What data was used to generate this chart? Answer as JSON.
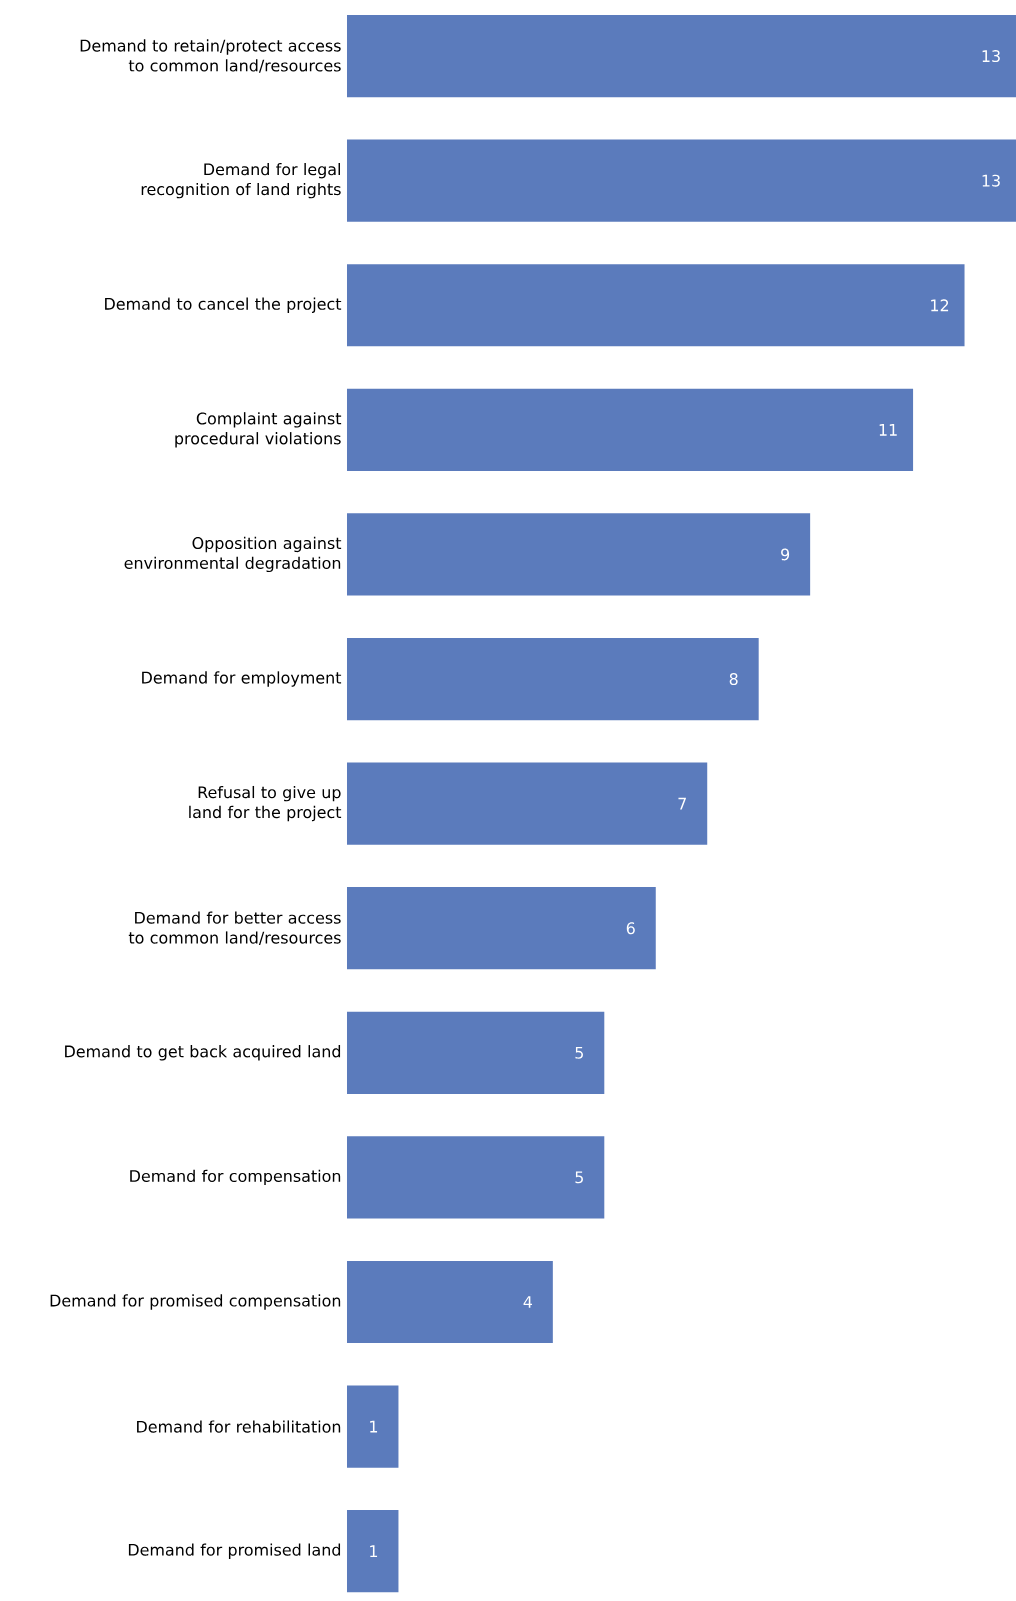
{
  "chart_data": {
    "type": "bar",
    "orientation": "horizontal",
    "categories": [
      "Demand to retain/protect access to common land/resources",
      "Demand for legal recognition of land rights",
      "Demand to cancel the project",
      "Complaint against procedural violations",
      "Opposition against environmental degradation",
      "Demand for employment",
      "Refusal to give up land for the project",
      "Demand for better access to common land/resources",
      "Demand to get back acquired land",
      "Demand for compensation",
      "Demand for promised compensation",
      "Demand for rehabilitation",
      "Demand for promised land"
    ],
    "values": [
      13,
      13,
      12,
      11,
      9,
      8,
      7,
      6,
      5,
      5,
      4,
      1,
      1
    ],
    "color": "#5b7bbc",
    "data_labels": true,
    "tick_labels": "y"
  }
}
